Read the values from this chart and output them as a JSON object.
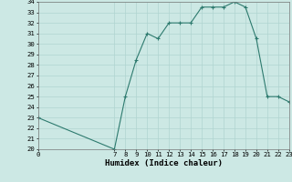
{
  "x": [
    0,
    7,
    8,
    9,
    10,
    11,
    12,
    13,
    14,
    15,
    16,
    17,
    18,
    19,
    20,
    21,
    22,
    23
  ],
  "y": [
    23,
    20,
    25,
    28.5,
    31,
    30.5,
    32,
    32,
    32,
    33.5,
    33.5,
    33.5,
    34,
    33.5,
    30.5,
    25,
    25,
    24.5
  ],
  "xlim": [
    0,
    23
  ],
  "ylim": [
    20,
    34
  ],
  "yticks": [
    20,
    21,
    22,
    23,
    24,
    25,
    26,
    27,
    28,
    29,
    30,
    31,
    32,
    33,
    34
  ],
  "xticks": [
    0,
    7,
    8,
    9,
    10,
    11,
    12,
    13,
    14,
    15,
    16,
    17,
    18,
    19,
    20,
    21,
    22,
    23
  ],
  "xlabel": "Humidex (Indice chaleur)",
  "line_color": "#2d7a6e",
  "marker": "+",
  "background_color": "#cce8e4",
  "grid_color": "#b0d4d0",
  "tick_label_fontsize": 5.2,
  "xlabel_fontsize": 6.5
}
